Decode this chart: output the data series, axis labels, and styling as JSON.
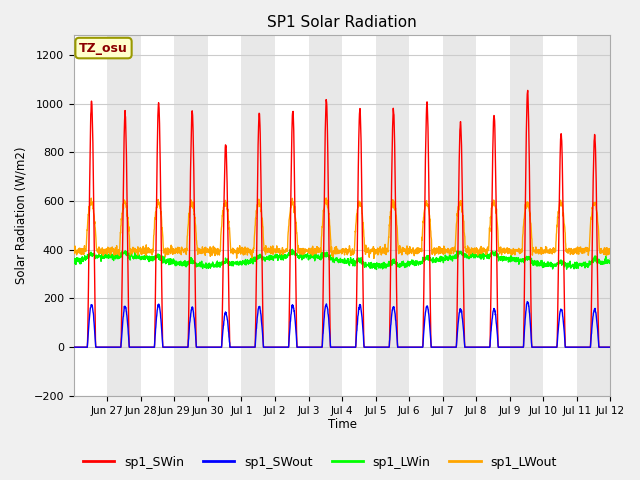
{
  "title": "SP1 Solar Radiation",
  "ylabel": "Solar Radiation (W/m2)",
  "xlabel": "Time",
  "annotation": "TZ_osu",
  "ylim": [
    -200,
    1280
  ],
  "yticks": [
    -200,
    0,
    200,
    400,
    600,
    800,
    1000,
    1200
  ],
  "legend": [
    "sp1_SWin",
    "sp1_SWout",
    "sp1_LWin",
    "sp1_LWout"
  ],
  "colors": [
    "red",
    "blue",
    "lime",
    "orange"
  ],
  "xtick_labels": [
    "Jun 27",
    "Jun 28",
    "Jun 29",
    "Jun 30",
    "Jul 1",
    "Jul 2",
    "Jul 3",
    "Jul 4",
    "Jul 5",
    "Jul 6",
    "Jul 7",
    "Jul 8",
    "Jul 9",
    "Jul 10",
    "Jul 11",
    "Jul 12"
  ],
  "background_color": "#f0f0f0",
  "plot_bg_color": "white",
  "SWin_peaks": [
    1010,
    960,
    1000,
    970,
    830,
    960,
    970,
    1010,
    975,
    975,
    1000,
    920,
    960,
    1050,
    875,
    870
  ],
  "SWout_peaks": [
    175,
    165,
    175,
    160,
    140,
    165,
    170,
    175,
    170,
    165,
    170,
    155,
    155,
    185,
    155,
    155
  ],
  "LWin_base": 355,
  "LWout_base": 395,
  "n_days": 16,
  "pts_per_day": 144,
  "figwidth": 6.4,
  "figheight": 4.8,
  "dpi": 100
}
